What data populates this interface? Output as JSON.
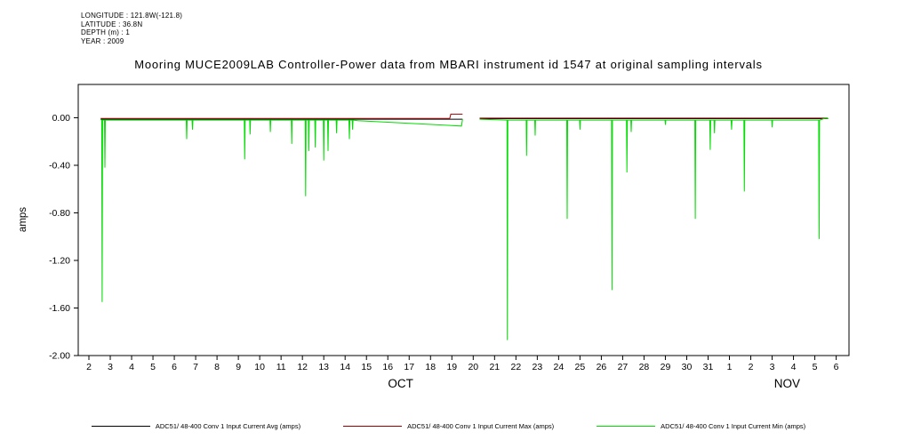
{
  "header": {
    "longitude": "LONGITUDE : 121.8W(-121.8)",
    "latitude": "LATITUDE : 36.8N",
    "depth": "DEPTH (m) : 1",
    "year": "YEAR : 2009"
  },
  "title": "Mooring MUCE2009LAB Controller-Power data from MBARI instrument id 1547 at original sampling intervals",
  "chart_data": {
    "type": "line",
    "title": "Mooring MUCE2009LAB Controller-Power data from MBARI instrument id 1547 at original sampling intervals",
    "xlabel": "",
    "ylabel": "amps",
    "ylim": [
      -2.0,
      0.28
    ],
    "yticks": [
      0.0,
      -0.4,
      -0.8,
      -1.2,
      -1.6,
      -2.0
    ],
    "xlim": [
      -0.5,
      35.6
    ],
    "xtick_labels": [
      "2",
      "3",
      "4",
      "5",
      "6",
      "7",
      "8",
      "9",
      "10",
      "11",
      "12",
      "13",
      "14",
      "15",
      "16",
      "17",
      "18",
      "19",
      "20",
      "21",
      "22",
      "23",
      "24",
      "25",
      "26",
      "27",
      "28",
      "29",
      "30",
      "31",
      "1",
      "2",
      "3",
      "4",
      "5",
      "6"
    ],
    "months": [
      {
        "day": 14.6,
        "label": "OCT"
      },
      {
        "day": 32.7,
        "label": "NOV"
      }
    ],
    "grid": false,
    "legend_position": "bottom",
    "x_unit": "days since Oct 2, 2009",
    "series": [
      {
        "id": "avg",
        "name": "ADC51/ 48-400 Conv 1 Input Current  Avg (amps)",
        "color": "#000000",
        "points": [
          [
            0.55,
            -0.012
          ],
          [
            17.5,
            -0.012
          ],
          null,
          [
            18.3,
            -0.008
          ],
          [
            34.6,
            -0.008
          ]
        ]
      },
      {
        "id": "max",
        "name": "ADC51/ 48-400 Conv 1 Input Current  Max (amps)",
        "color": "#990000",
        "points": [
          [
            0.55,
            -0.006
          ],
          [
            16.9,
            -0.006
          ],
          [
            16.95,
            0.03
          ],
          [
            17.5,
            0.03
          ],
          null,
          [
            18.3,
            -0.003
          ],
          [
            34.6,
            -0.003
          ]
        ]
      },
      {
        "id": "min",
        "name": "ADC51/ 48-400 Conv 1 Input Current  Min (amps)",
        "color": "#00dd00",
        "points": [
          [
            0.55,
            -0.015
          ],
          [
            0.6,
            -0.02
          ],
          [
            0.62,
            -1.55
          ],
          [
            0.64,
            -0.02
          ],
          [
            0.73,
            -0.02
          ],
          [
            0.75,
            -0.42
          ],
          [
            0.77,
            -0.02
          ],
          [
            4.56,
            -0.02
          ],
          [
            4.58,
            -0.18
          ],
          [
            4.6,
            -0.02
          ],
          [
            4.83,
            -0.02
          ],
          [
            4.85,
            -0.1
          ],
          [
            4.87,
            -0.02
          ],
          [
            7.28,
            -0.02
          ],
          [
            7.3,
            -0.35
          ],
          [
            7.32,
            -0.02
          ],
          [
            7.53,
            -0.02
          ],
          [
            7.55,
            -0.14
          ],
          [
            7.57,
            -0.02
          ],
          [
            8.48,
            -0.02
          ],
          [
            8.5,
            -0.12
          ],
          [
            8.52,
            -0.02
          ],
          [
            9.48,
            -0.02
          ],
          [
            9.5,
            -0.22
          ],
          [
            9.52,
            -0.02
          ],
          [
            10.13,
            -0.02
          ],
          [
            10.15,
            -0.66
          ],
          [
            10.17,
            -0.02
          ],
          [
            10.28,
            -0.02
          ],
          [
            10.3,
            -0.28
          ],
          [
            10.32,
            -0.02
          ],
          [
            10.58,
            -0.02
          ],
          [
            10.6,
            -0.25
          ],
          [
            10.62,
            -0.02
          ],
          [
            10.98,
            -0.02
          ],
          [
            11.0,
            -0.36
          ],
          [
            11.02,
            -0.02
          ],
          [
            11.18,
            -0.02
          ],
          [
            11.2,
            -0.28
          ],
          [
            11.22,
            -0.02
          ],
          [
            11.58,
            -0.02
          ],
          [
            11.6,
            -0.13
          ],
          [
            11.62,
            -0.02
          ],
          [
            12.18,
            -0.02
          ],
          [
            12.2,
            -0.18
          ],
          [
            12.22,
            -0.02
          ],
          [
            12.33,
            -0.02
          ],
          [
            12.35,
            -0.1
          ],
          [
            12.37,
            -0.02
          ],
          [
            12.6,
            -0.025
          ],
          [
            17.45,
            -0.07
          ],
          [
            17.5,
            -0.012
          ],
          null,
          [
            18.3,
            -0.012
          ],
          [
            19.58,
            -0.02
          ],
          [
            19.6,
            -1.87
          ],
          [
            19.62,
            -0.02
          ],
          [
            20.48,
            -0.02
          ],
          [
            20.5,
            -0.32
          ],
          [
            20.52,
            -0.02
          ],
          [
            20.88,
            -0.02
          ],
          [
            20.9,
            -0.15
          ],
          [
            20.92,
            -0.02
          ],
          [
            22.38,
            -0.02
          ],
          [
            22.4,
            -0.85
          ],
          [
            22.42,
            -0.02
          ],
          [
            22.98,
            -0.02
          ],
          [
            23.0,
            -0.1
          ],
          [
            23.02,
            -0.02
          ],
          [
            24.48,
            -0.02
          ],
          [
            24.5,
            -1.45
          ],
          [
            24.52,
            -0.02
          ],
          [
            25.18,
            -0.02
          ],
          [
            25.2,
            -0.46
          ],
          [
            25.22,
            -0.02
          ],
          [
            25.38,
            -0.02
          ],
          [
            25.4,
            -0.12
          ],
          [
            25.42,
            -0.02
          ],
          [
            26.98,
            -0.02
          ],
          [
            27.0,
            -0.06
          ],
          [
            27.02,
            -0.02
          ],
          [
            28.38,
            -0.02
          ],
          [
            28.4,
            -0.85
          ],
          [
            28.42,
            -0.02
          ],
          [
            29.08,
            -0.02
          ],
          [
            29.1,
            -0.27
          ],
          [
            29.12,
            -0.02
          ],
          [
            29.28,
            -0.02
          ],
          [
            29.3,
            -0.13
          ],
          [
            29.32,
            -0.02
          ],
          [
            30.08,
            -0.02
          ],
          [
            30.1,
            -0.1
          ],
          [
            30.12,
            -0.02
          ],
          [
            30.68,
            -0.02
          ],
          [
            30.7,
            -0.62
          ],
          [
            30.72,
            -0.02
          ],
          [
            31.98,
            -0.02
          ],
          [
            32.0,
            -0.08
          ],
          [
            32.02,
            -0.02
          ],
          [
            34.18,
            -0.02
          ],
          [
            34.2,
            -1.02
          ],
          [
            34.22,
            -0.02
          ],
          [
            34.45,
            -0.006
          ],
          [
            34.65,
            -0.006
          ]
        ]
      }
    ]
  }
}
